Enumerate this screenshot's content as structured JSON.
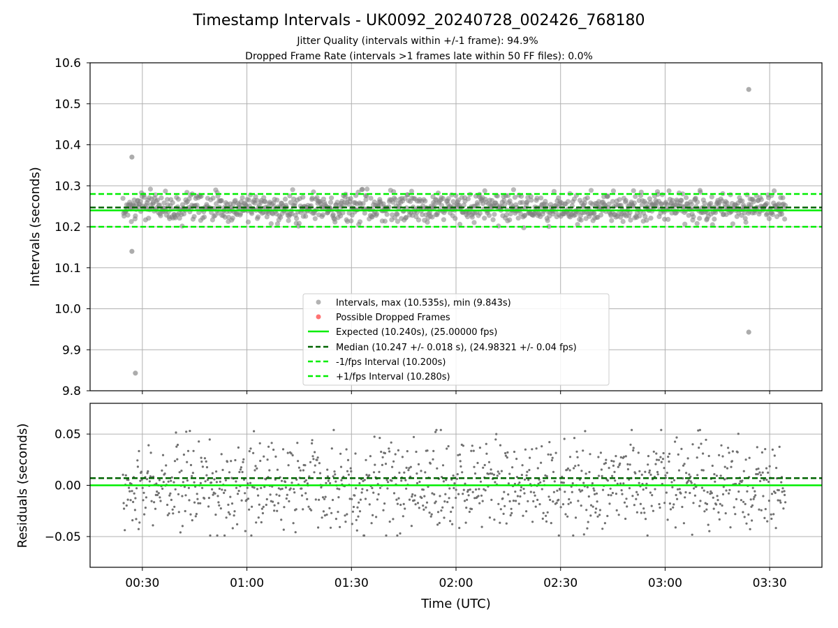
{
  "chart_data": [
    {
      "type": "scatter",
      "title": "Timestamp Intervals - UK0092_20240728_002426_768180",
      "subtitles": [
        "Jitter Quality (intervals within +/-1 frame): 94.9%",
        "Dropped Frame Rate (intervals >1 frames late within 50 FF files): 0.0%"
      ],
      "xlabel": "",
      "ylabel": "Intervals (seconds)",
      "ylim": [
        9.8,
        10.6
      ],
      "xlim": [
        "00:15",
        "03:45"
      ],
      "x_ticks": [
        "00:30",
        "01:00",
        "01:30",
        "02:00",
        "02:30",
        "03:00",
        "03:30"
      ],
      "y_ticks": [
        "9.8",
        "9.9",
        "10.0",
        "10.1",
        "10.2",
        "10.3",
        "10.4",
        "10.5",
        "10.6"
      ],
      "grid": true,
      "legend_position": "lower-center",
      "x_start": "00:24:26",
      "x_end": "03:34:30",
      "series": [
        {
          "name": "Intervals, max (10.535s), min (9.843s)",
          "kind": "points",
          "color": "#808080",
          "center": 10.247,
          "spread": 0.018,
          "count": 1110
        },
        {
          "name": "Possible Dropped Frames",
          "kind": "points",
          "color": "#ff0000",
          "values": []
        },
        {
          "name": "Expected (10.240s), (25.00000 fps)",
          "kind": "hline",
          "value": 10.24,
          "color": "#00ee00",
          "style": "solid"
        },
        {
          "name": "Median (10.247 +/- 0.018 s), (24.98321 +/- 0.04 fps)",
          "kind": "hline",
          "value": 10.247,
          "color": "#006400",
          "style": "dashed"
        },
        {
          "name": "-1/fps Interval (10.200s)",
          "kind": "hline",
          "value": 10.2,
          "color": "#00ee00",
          "style": "dashed"
        },
        {
          "name": "+1/fps Interval (10.280s)",
          "kind": "hline",
          "value": 10.28,
          "color": "#00ee00",
          "style": "dashed"
        }
      ],
      "outliers": [
        {
          "x": "00:27",
          "y": 10.37
        },
        {
          "x": "00:27",
          "y": 10.14
        },
        {
          "x": "00:28",
          "y": 9.843
        },
        {
          "x": "03:24",
          "y": 10.535
        },
        {
          "x": "03:24",
          "y": 9.943
        }
      ]
    },
    {
      "type": "scatter",
      "title": "",
      "xlabel": "Time (UTC)",
      "ylabel": "Residuals (seconds)",
      "ylim": [
        -0.08,
        0.08
      ],
      "y_ticks": [
        "−0.05",
        "0.00",
        "0.05"
      ],
      "y_tick_values": [
        -0.05,
        0.0,
        0.05
      ],
      "grid": true,
      "series": [
        {
          "name": "",
          "kind": "points",
          "color": "#707070",
          "spread": 0.022,
          "count": 1110
        },
        {
          "name": "Expected",
          "kind": "hline",
          "value": 0.0,
          "color": "#00ee00",
          "style": "solid"
        },
        {
          "name": "Median",
          "kind": "hline",
          "value": 0.007,
          "color": "#006400",
          "style": "dashed"
        }
      ]
    }
  ]
}
